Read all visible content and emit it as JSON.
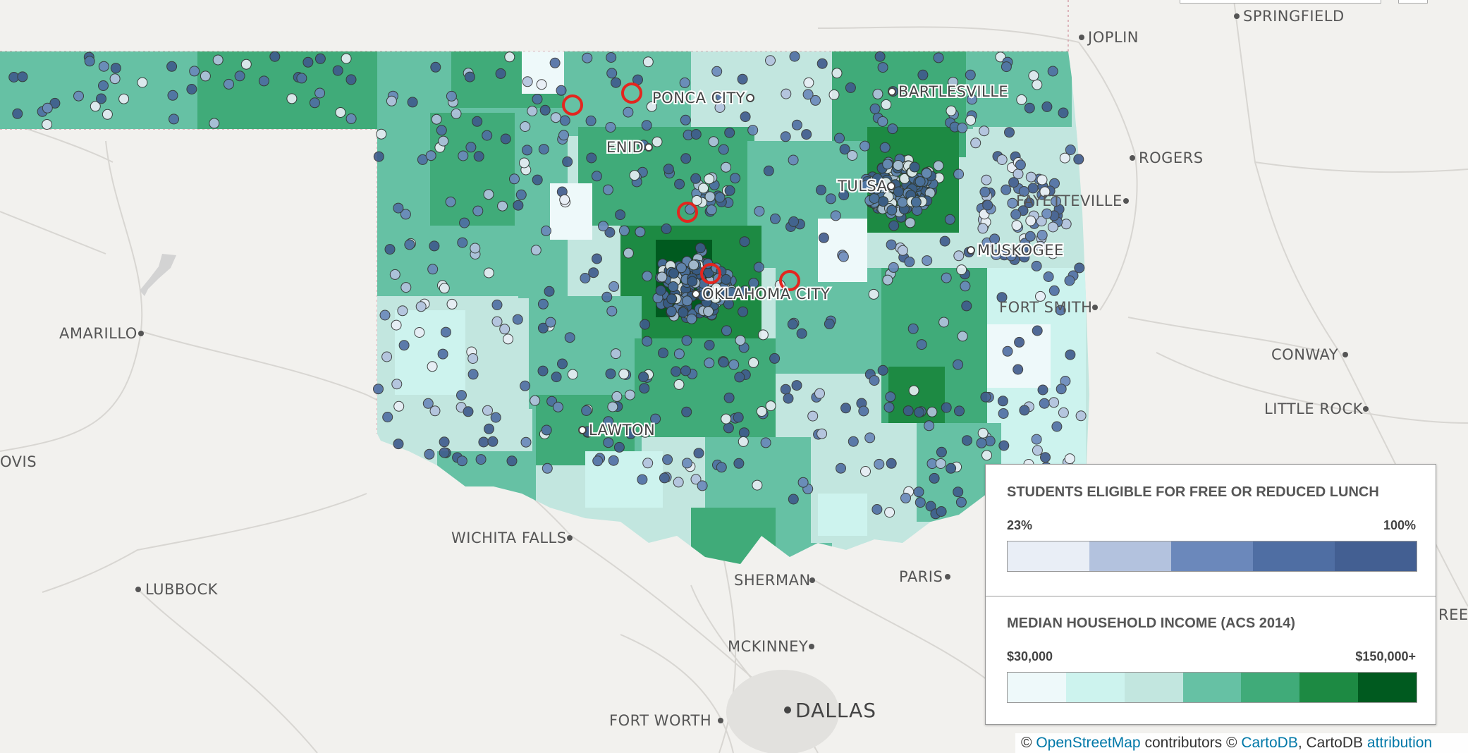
{
  "map": {
    "cities": [
      {
        "id": "springfield",
        "name": "SPRINGFIELD"
      },
      {
        "id": "joplin",
        "name": "JOPLIN"
      },
      {
        "id": "bartlesville",
        "name": "BARTLESVILLE"
      },
      {
        "id": "ponca-city",
        "name": "PONCA CITY"
      },
      {
        "id": "enid",
        "name": "ENID"
      },
      {
        "id": "rogers",
        "name": "ROGERS"
      },
      {
        "id": "tulsa",
        "name": "TULSA"
      },
      {
        "id": "fayetteville",
        "name": "FAYETTEVILLE"
      },
      {
        "id": "muskogee",
        "name": "MUSKOGEE"
      },
      {
        "id": "oklahoma-city",
        "name": "OKLAHOMA CITY"
      },
      {
        "id": "fort-smith",
        "name": "FORT SMITH"
      },
      {
        "id": "amarillo",
        "name": "AMARILLO"
      },
      {
        "id": "conway",
        "name": "CONWAY"
      },
      {
        "id": "little-rock",
        "name": "LITTLE ROCK"
      },
      {
        "id": "clovis",
        "name": "OVIS"
      },
      {
        "id": "lawton",
        "name": "LAWTON"
      },
      {
        "id": "wichita-falls",
        "name": "WICHITA FALLS"
      },
      {
        "id": "sherman",
        "name": "SHERMAN"
      },
      {
        "id": "paris",
        "name": "PARIS"
      },
      {
        "id": "lubbock",
        "name": "LUBBOCK"
      },
      {
        "id": "mckinney",
        "name": "MCKINNEY"
      },
      {
        "id": "dallas",
        "name": "DALLAS"
      },
      {
        "id": "fort-worth",
        "name": "FORT WORTH"
      },
      {
        "id": "greenville-partial",
        "name": "REE"
      }
    ]
  },
  "legend": {
    "lunch": {
      "title": "STUDENTS ELIGIBLE FOR FREE OR REDUCED LUNCH",
      "min": "23%",
      "max": "100%",
      "colors": [
        "#e9eef6",
        "#b3c2de",
        "#6b88bb",
        "#4f6ea3",
        "#435f92"
      ]
    },
    "income": {
      "title": "MEDIAN HOUSEHOLD INCOME (ACS 2014)",
      "min": "$30,000",
      "max": "$150,000+",
      "colors": [
        "#eef9fa",
        "#cdf3ee",
        "#c2e6df",
        "#66c1a4",
        "#40ab79",
        "#1d8a43",
        "#005a1f"
      ]
    }
  },
  "attribution": {
    "copy1": "©",
    "osm": "OpenStreetMap",
    "contributors": "contributors ©",
    "cartodb": "CartoDB",
    "comma": ", CartoDB",
    "attr": "attribution"
  }
}
